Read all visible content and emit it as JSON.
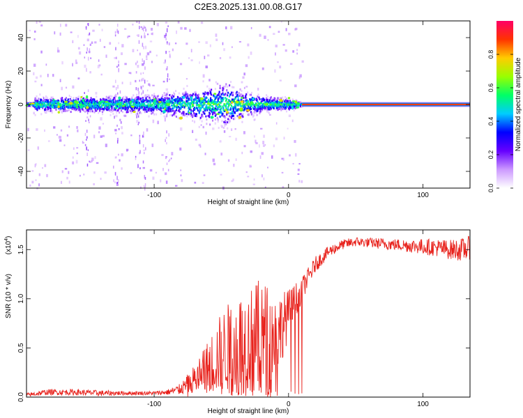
{
  "title": "C2E3.2025.131.00.08.G17",
  "chart_data": [
    {
      "type": "heatmap",
      "xlabel": "Height of straight line (km)",
      "ylabel": "Frequency (Hz)",
      "xlim": [
        -195,
        135
      ],
      "ylim": [
        -50,
        50
      ],
      "xticks": [
        -100,
        0,
        100
      ],
      "yticks": [
        -40,
        -20,
        0,
        20,
        40
      ],
      "colorbar": {
        "label": "Normalized spectral amplitude",
        "range": [
          0,
          1
        ],
        "ticks": [
          "0.0",
          "0.2",
          "0.4",
          "0.6",
          "0.8"
        ],
        "stops": [
          "#ffffff",
          "#cc99ff",
          "#6600ff",
          "#0000ff",
          "#00ccff",
          "#00ff66",
          "#99ff00",
          "#ffcc00",
          "#ff3300",
          "#ff0066"
        ]
      },
      "noisy_segment_x": [
        -195,
        10
      ],
      "carrier_frequency_hz": 0,
      "dispersion_at_x": [
        {
          "x": -190,
          "hz": 4
        },
        {
          "x": -150,
          "hz": 4
        },
        {
          "x": -100,
          "hz": 5
        },
        {
          "x": -80,
          "hz": 7
        },
        {
          "x": -60,
          "hz": 10
        },
        {
          "x": -45,
          "hz": 12
        },
        {
          "x": -30,
          "hz": 6
        },
        {
          "x": -15,
          "hz": 4
        },
        {
          "x": 0,
          "hz": 3
        },
        {
          "x": 10,
          "hz": 1
        },
        {
          "x": 135,
          "hz": 1
        }
      ]
    },
    {
      "type": "line",
      "xlabel": "Height of straight line (km)",
      "ylabel": "SNR (10 * v/v)",
      "exponent_label": "(x10",
      "exponent": "4",
      "xlim": [
        -195,
        135
      ],
      "ylim": [
        0,
        1.7
      ],
      "xticks": [
        -100,
        0,
        100
      ],
      "yticks": [
        0.0,
        0.5,
        1.0,
        1.5
      ],
      "ytick_labels": [
        "0.0",
        "0.5",
        "1.0",
        "1.5"
      ],
      "series": [
        {
          "color": "#e8221c",
          "x": [
            -195,
            -180,
            -160,
            -140,
            -120,
            -100,
            -90,
            -80,
            -70,
            -60,
            -50,
            -40,
            -30,
            -20,
            -10,
            0,
            10,
            20,
            30,
            40,
            50,
            60,
            70,
            80,
            90,
            100,
            110,
            120,
            130,
            135
          ],
          "y": [
            0.02,
            0.05,
            0.05,
            0.04,
            0.04,
            0.04,
            0.05,
            0.08,
            0.18,
            0.3,
            0.45,
            0.55,
            0.55,
            0.62,
            0.6,
            0.85,
            1.1,
            1.35,
            1.48,
            1.55,
            1.58,
            1.57,
            1.56,
            1.55,
            1.54,
            1.53,
            1.52,
            1.5,
            1.5,
            1.52
          ],
          "noise": [
            0.02,
            0.03,
            0.03,
            0.03,
            0.02,
            0.02,
            0.03,
            0.06,
            0.15,
            0.28,
            0.42,
            0.5,
            0.55,
            0.6,
            0.45,
            0.25,
            0.12,
            0.08,
            0.06,
            0.05,
            0.05,
            0.05,
            0.06,
            0.06,
            0.07,
            0.08,
            0.09,
            0.1,
            0.12,
            0.12
          ]
        }
      ]
    }
  ]
}
